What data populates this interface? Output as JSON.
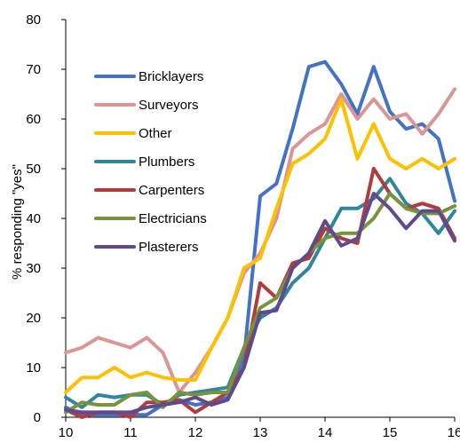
{
  "chart_data": {
    "type": "line",
    "ylabel": "% responding \"yes\"",
    "xlabel": "",
    "xlim": [
      10,
      16
    ],
    "ylim": [
      0,
      80
    ],
    "x_ticks": [
      10,
      11,
      12,
      13,
      14,
      15,
      16
    ],
    "y_ticks": [
      0,
      10,
      20,
      30,
      40,
      50,
      60,
      70,
      80
    ],
    "grid": false,
    "legend_placement": "upper-left",
    "x": [
      10,
      10.25,
      10.5,
      10.75,
      11,
      11.25,
      11.5,
      11.75,
      12,
      12.25,
      12.5,
      12.75,
      13,
      13.25,
      13.5,
      13.75,
      14,
      14.25,
      14.5,
      14.75,
      15,
      15.25,
      15.5,
      15.75,
      16
    ],
    "series": [
      {
        "name": "Bricklayers",
        "color": "#4472c4",
        "values": [
          2,
          0.5,
          0.5,
          0.5,
          0.5,
          0.5,
          2.5,
          3.5,
          2.5,
          3,
          4,
          12,
          44.5,
          47,
          58,
          70.5,
          71.5,
          67,
          61,
          70.5,
          61.5,
          58,
          59,
          56,
          43.5
        ]
      },
      {
        "name": "Surveyors",
        "color": "#d99694",
        "values": [
          13,
          14,
          16,
          15,
          14,
          16,
          13,
          5,
          9,
          14,
          20,
          29,
          33,
          40,
          54,
          57,
          59,
          65,
          60,
          64,
          60,
          61,
          57,
          61,
          66
        ]
      },
      {
        "name": "Other",
        "color": "#ffc000",
        "values": [
          5,
          8,
          8,
          10,
          8,
          9,
          8,
          7.5,
          7.5,
          14,
          20,
          30,
          32,
          42,
          51,
          53,
          56,
          64,
          52,
          59,
          52,
          50,
          52,
          50,
          52
        ]
      },
      {
        "name": "Plumbers",
        "color": "#31859c",
        "values": [
          4,
          2,
          4.5,
          4,
          4.5,
          4.5,
          2.5,
          4.5,
          5,
          5.5,
          6,
          14,
          20,
          22,
          27,
          30,
          36,
          42,
          42,
          44,
          48,
          43,
          41,
          37,
          41.5
        ]
      },
      {
        "name": "Carpenters",
        "color": "#b03c3c",
        "values": [
          1.5,
          0,
          1,
          1,
          0,
          3,
          3,
          3.5,
          1,
          3,
          5,
          10,
          27,
          24,
          31,
          32,
          38,
          36,
          35,
          50,
          45,
          42,
          43,
          42,
          36
        ]
      },
      {
        "name": "Electricians",
        "color": "#77933c",
        "values": [
          1,
          3,
          2.5,
          2.5,
          4.5,
          5,
          2,
          5,
          4.5,
          5,
          5,
          14,
          22,
          24,
          30,
          33,
          36,
          37,
          37,
          40,
          45,
          42,
          41,
          41,
          42.5
        ]
      },
      {
        "name": "Plasterers",
        "color": "#5f4b8b",
        "values": [
          1.5,
          1,
          1,
          1,
          1,
          2,
          2.5,
          3,
          4,
          2.5,
          3.5,
          10,
          21,
          21.5,
          30,
          33,
          39.5,
          34.5,
          36,
          45,
          42,
          38,
          41.5,
          41.5,
          35.5
        ]
      }
    ]
  }
}
